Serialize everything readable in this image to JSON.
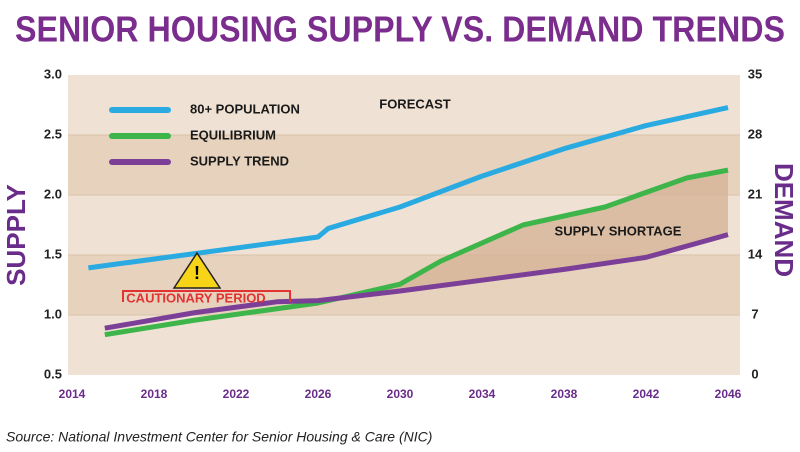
{
  "chart_data": {
    "type": "line",
    "title": "SENIOR HOUSING SUPPLY  VS. DEMAND TRENDS",
    "y_label": "SUPPLY",
    "y2_label": "DEMAND",
    "source": "Source: National Investment Center for Senior Housing & Care (NIC)",
    "annotations": [
      "FORECAST",
      "SUPPLY SHORTAGE",
      "CAUTIONARY PERIOD"
    ],
    "xlim": [
      2014,
      2046
    ],
    "xticks": [
      2014,
      2018,
      2022,
      2026,
      2030,
      2034,
      2038,
      2042,
      2046
    ],
    "ylim": [
      0.5,
      3.0
    ],
    "yticks": [
      0.5,
      {
        "value": 1.0,
        "label": "1.0"
      },
      1.5,
      {
        "value": 2.0,
        "label": "2.0"
      },
      2.5,
      {
        "value": 3.0,
        "label": "3.0"
      }
    ],
    "y2lim": [
      0,
      35
    ],
    "y2ticks": [
      0,
      7,
      14,
      21,
      28,
      35
    ],
    "legend": "upper left",
    "series": [
      {
        "name": "80+ POPULATION",
        "color": "#29abe2",
        "axis": "y2",
        "x": [
          2014.8,
          2026,
          2026.5,
          2030,
          2034,
          2038,
          2042,
          2046
        ],
        "values": [
          12.5,
          16.1,
          17.1,
          19.6,
          23.2,
          26.4,
          29.1,
          31.2
        ]
      },
      {
        "name": "EQUILIBRIUM",
        "color": "#3db54a",
        "axis": "y2",
        "x": [
          2015.6,
          2020,
          2026,
          2030,
          2032,
          2036,
          2040,
          2044,
          2046
        ],
        "values": [
          4.7,
          6.4,
          8.4,
          10.6,
          13.3,
          17.5,
          19.6,
          23.0,
          23.9
        ]
      },
      {
        "name": "SUPPLY TREND",
        "color": "#7b3f98",
        "axis": "y",
        "x": [
          2015.6,
          2020,
          2024,
          2026,
          2030,
          2034,
          2038,
          2042,
          2046
        ],
        "values": [
          0.89,
          1.02,
          1.11,
          1.12,
          1.2,
          1.29,
          1.38,
          1.48,
          1.67
        ]
      }
    ]
  }
}
